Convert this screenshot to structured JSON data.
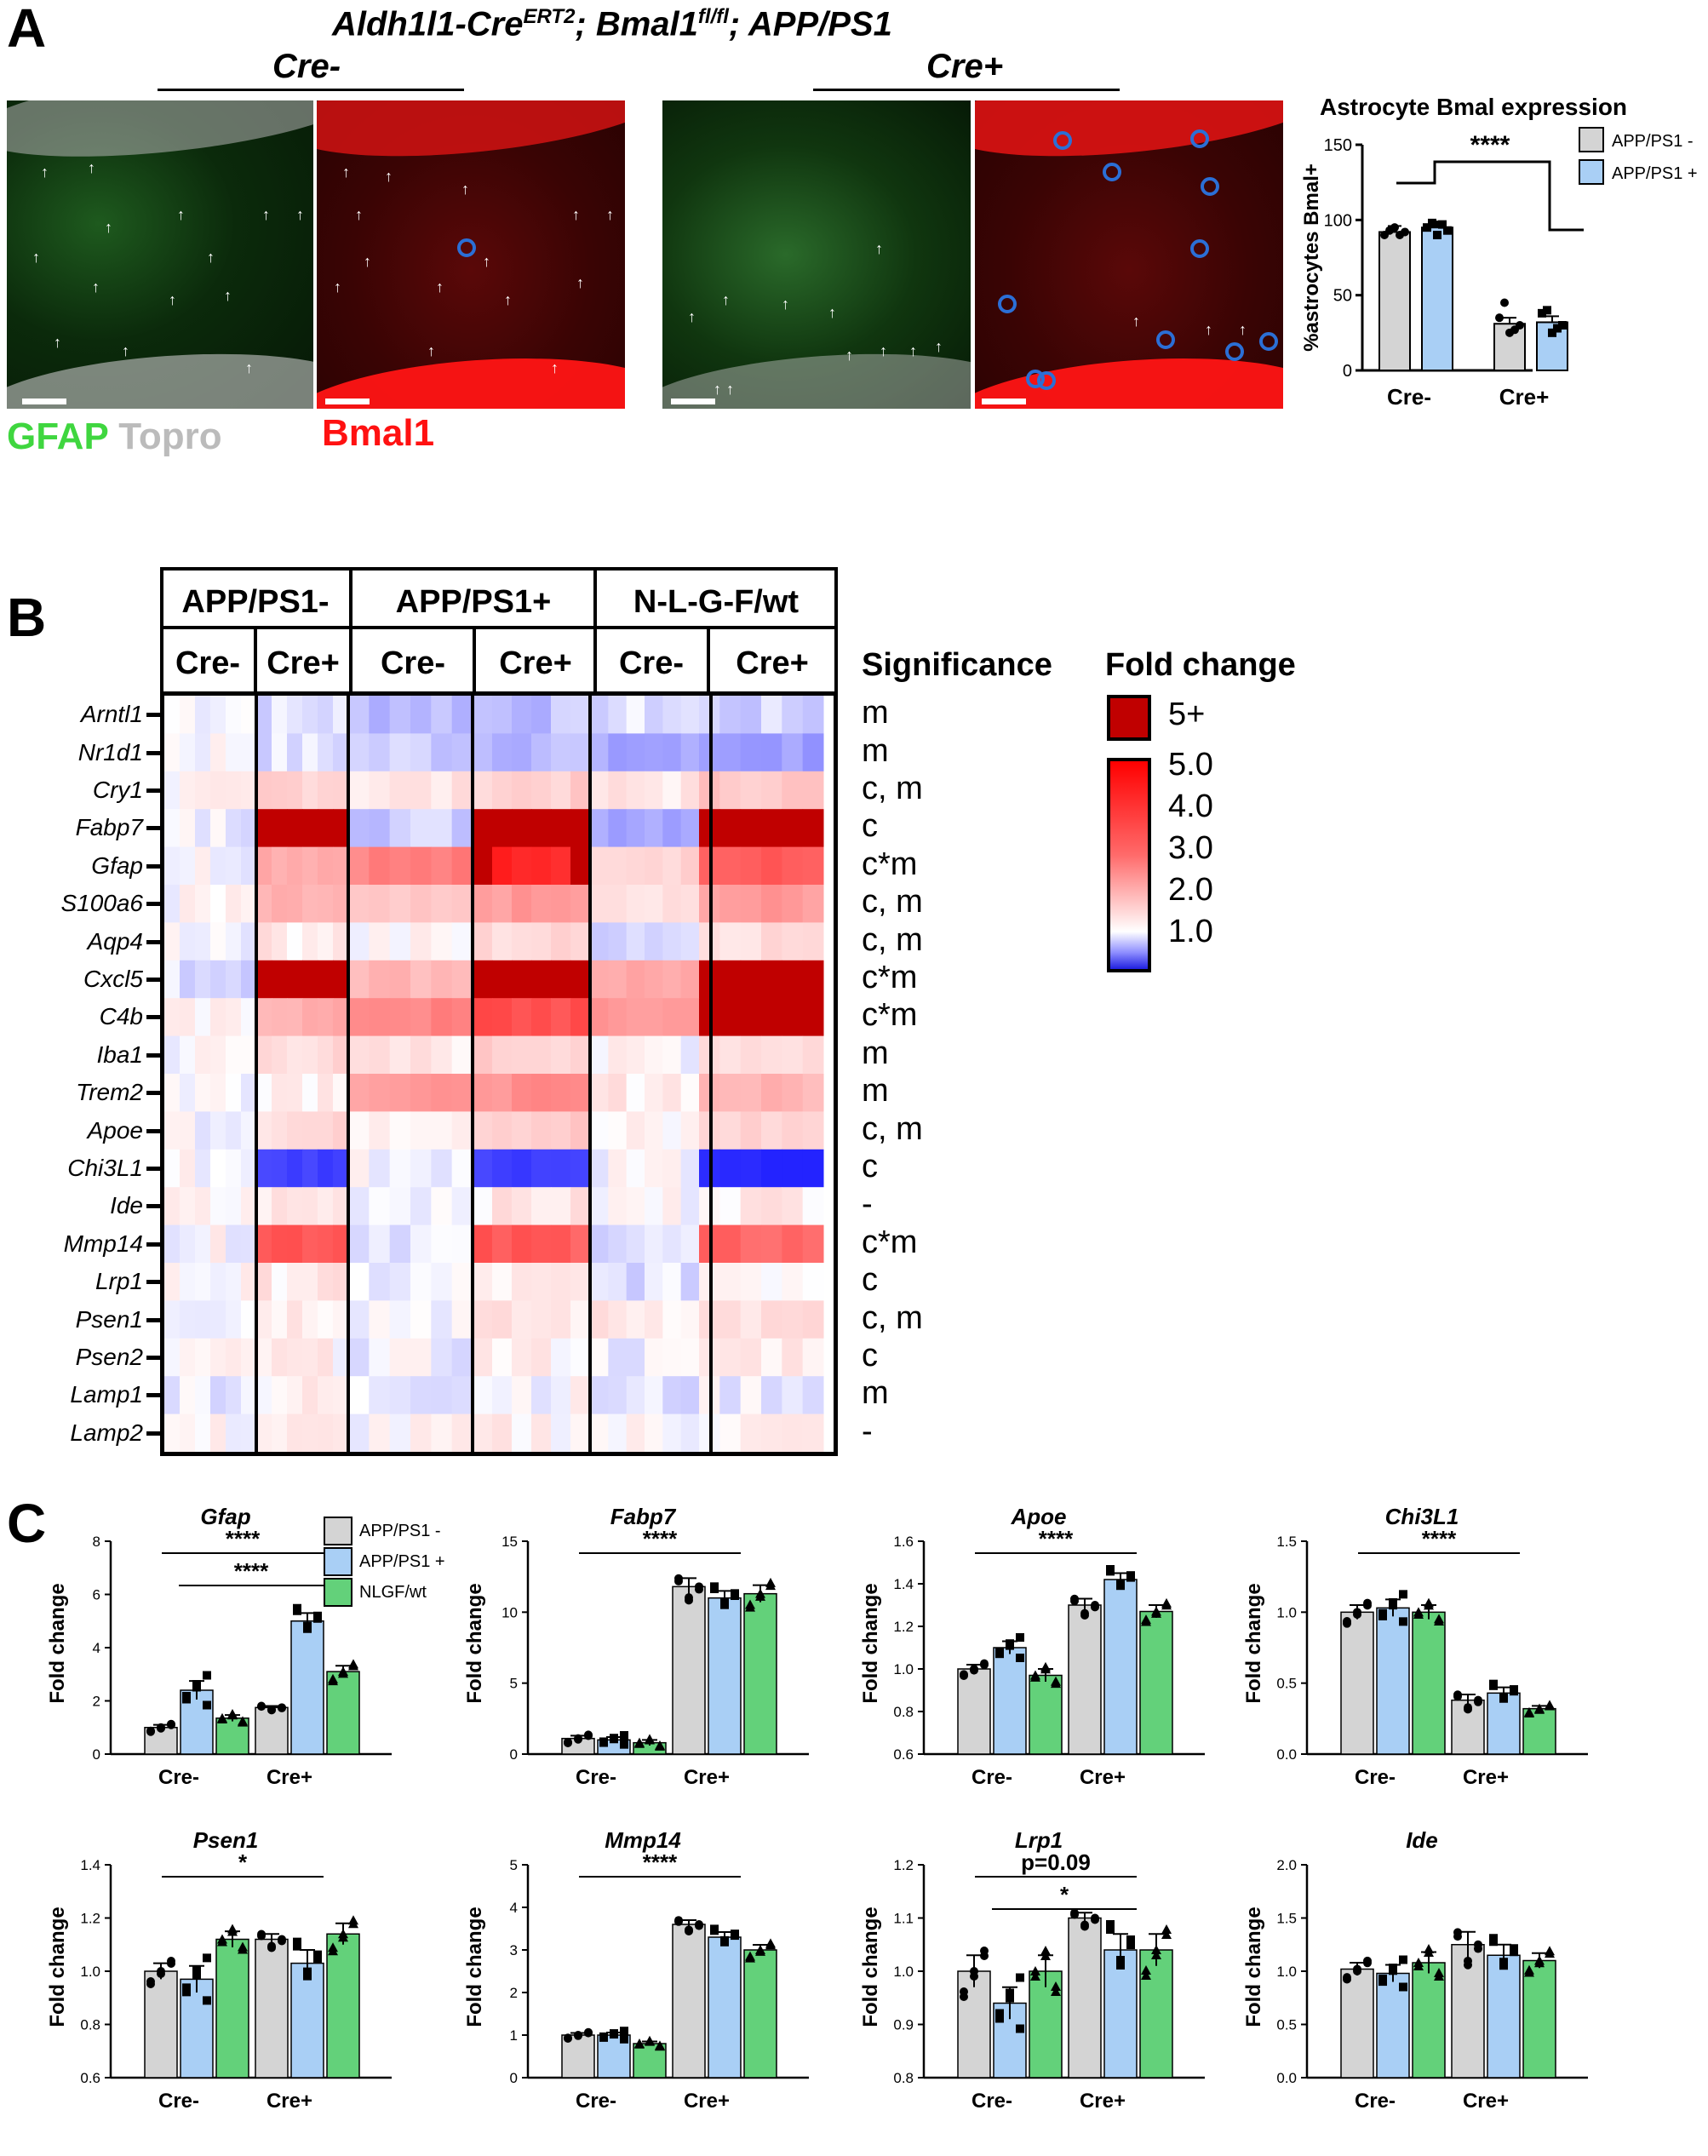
{
  "panel_a": {
    "letter": "A",
    "title_prefix": "Aldh1l1-Cre",
    "title_sup": "ERT2",
    "title_mid": "; Bmal1",
    "title_sup2": "fl/fl",
    "title_suffix": "; APP/PS1",
    "group_left": "Cre-",
    "group_right": "Cre+",
    "legend_gfap": "GFAP",
    "legend_topro": "Topro",
    "legend_bmal1": "Bmal1",
    "colors": {
      "gfap": "#3fd63f",
      "topro": "#bbbbbb",
      "bmal1": "#ff1111"
    },
    "chart_data": {
      "type": "bar",
      "title": "Astrocyte Bmal expression",
      "ylabel": "%astrocytes Bmal+",
      "categories": [
        "Cre-",
        "Cre+"
      ],
      "series": [
        {
          "name": "APP/PS1 -",
          "color": "#d4d4d4",
          "values": [
            92,
            31
          ]
        },
        {
          "name": "APP/PS1 +",
          "color": "#a9cff5",
          "values": [
            95,
            32
          ]
        }
      ],
      "ylim": [
        0,
        150
      ],
      "yticks": [
        "0",
        "50",
        "100",
        "150"
      ],
      "annotation": "****"
    }
  },
  "panel_b": {
    "letter": "B",
    "genotypes": [
      "APP/PS1-",
      "APP/PS1+",
      "N-L-G-F/wt"
    ],
    "cre": [
      "Cre-",
      "Cre+",
      "Cre-",
      "Cre+",
      "Cre-",
      "Cre+"
    ],
    "significance_title": "Significance",
    "foldchange_title": "Fold change",
    "legend_max": "5+",
    "legend_ticks": [
      "5.0",
      "4.0",
      "3.0",
      "2.0",
      "1.0"
    ],
    "colors": {
      "max": "#c00000",
      "high": "#ff1a1a",
      "low": "#3030e0"
    },
    "chart_data": {
      "type": "heatmap",
      "genes": [
        "Arntl1",
        "Nr1d1",
        "Cry1",
        "Fabp7",
        "Gfap",
        "S100a6",
        "Aqp4",
        "Cxcl5",
        "C4b",
        "Iba1",
        "Trem2",
        "Apoe",
        "Chi3L1",
        "Ide",
        "Mmp14",
        "Lrp1",
        "Psen1",
        "Psen2",
        "Lamp1",
        "Lamp2"
      ],
      "significance": [
        "m",
        "m",
        "c, m",
        "c",
        "c*m",
        "c, m",
        "c, m",
        "c*m",
        "c*m",
        "m",
        "m",
        "c, m",
        "c",
        "-",
        "c*m",
        "c",
        "c, m",
        "c",
        "m",
        "-"
      ],
      "group_mean_fold_change": [
        [
          1.0,
          0.9,
          0.8,
          0.8,
          0.9,
          0.85
        ],
        [
          1.0,
          0.9,
          0.85,
          0.8,
          0.7,
          0.7
        ],
        [
          1.0,
          1.3,
          1.1,
          1.3,
          1.1,
          1.4
        ],
        [
          0.95,
          6.0,
          0.85,
          6.0,
          0.75,
          6.0
        ],
        [
          1.0,
          1.8,
          2.5,
          4.8,
          1.3,
          3.2
        ],
        [
          1.0,
          1.6,
          1.3,
          2.0,
          1.1,
          2.0
        ],
        [
          1.0,
          1.1,
          1.0,
          1.2,
          0.9,
          1.2
        ],
        [
          0.9,
          6.0,
          1.6,
          6.0,
          1.8,
          6.0
        ],
        [
          1.0,
          1.7,
          2.4,
          3.6,
          2.0,
          5.0
        ],
        [
          1.0,
          1.2,
          1.1,
          1.3,
          1.0,
          1.2
        ],
        [
          1.0,
          1.1,
          2.0,
          2.2,
          1.1,
          1.6
        ],
        [
          1.0,
          1.2,
          1.1,
          1.35,
          1.0,
          1.25
        ],
        [
          1.0,
          0.4,
          1.0,
          0.4,
          1.0,
          0.3
        ],
        [
          1.0,
          1.1,
          1.0,
          1.1,
          1.0,
          1.1
        ],
        [
          1.0,
          3.5,
          0.95,
          3.3,
          0.9,
          3.0
        ],
        [
          1.0,
          1.1,
          0.95,
          1.05,
          0.9,
          1.05
        ],
        [
          1.0,
          1.1,
          1.0,
          1.1,
          1.1,
          1.15
        ],
        [
          1.0,
          1.05,
          0.95,
          1.05,
          0.95,
          1.1
        ],
        [
          0.95,
          1.05,
          0.95,
          1.0,
          0.9,
          0.95
        ],
        [
          1.0,
          1.05,
          1.0,
          1.05,
          1.0,
          1.05
        ]
      ]
    }
  },
  "panel_c": {
    "letter": "C",
    "legend": [
      "APP/PS1 -",
      "APP/PS1 +",
      "NLGF/wt"
    ],
    "colors": [
      "#d4d4d4",
      "#a9cff5",
      "#63d17a"
    ],
    "ylabel": "Fold change",
    "chart_data": [
      {
        "type": "bar",
        "title": "Gfap",
        "categories": [
          "Cre-",
          "Cre+"
        ],
        "values": [
          [
            1.0,
            2.4,
            1.35
          ],
          [
            1.75,
            5.0,
            3.1
          ]
        ],
        "errors": [
          [
            0.1,
            0.35,
            0.12
          ],
          [
            0.06,
            0.3,
            0.22
          ]
        ],
        "ylim": [
          0,
          8
        ],
        "yticks": [
          "0",
          "2",
          "4",
          "6",
          "8"
        ],
        "annotations": [
          "****",
          "****"
        ]
      },
      {
        "type": "bar",
        "title": "Fabp7",
        "categories": [
          "Cre-",
          "Cre+"
        ],
        "values": [
          [
            1.1,
            1.0,
            0.8
          ],
          [
            11.8,
            11.0,
            11.3
          ]
        ],
        "errors": [
          [
            0.2,
            0.2,
            0.2
          ],
          [
            0.6,
            0.5,
            0.6
          ]
        ],
        "ylim": [
          0,
          15
        ],
        "yticks": [
          "0",
          "5",
          "10",
          "15"
        ],
        "annotations": [
          "****"
        ]
      },
      {
        "type": "bar",
        "title": "Apoe",
        "categories": [
          "Cre-",
          "Cre+"
        ],
        "values": [
          [
            1.0,
            1.1,
            0.97
          ],
          [
            1.3,
            1.42,
            1.27
          ]
        ],
        "errors": [
          [
            0.02,
            0.03,
            0.03
          ],
          [
            0.03,
            0.03,
            0.03
          ]
        ],
        "ylim": [
          0.6,
          1.6
        ],
        "yticks": [
          "0.6",
          "0.8",
          "1.0",
          "1.2",
          "1.4",
          "1.6"
        ],
        "annotations": [
          "****"
        ]
      },
      {
        "type": "bar",
        "title": "Chi3L1",
        "categories": [
          "Cre-",
          "Cre+"
        ],
        "values": [
          [
            1.0,
            1.03,
            1.0
          ],
          [
            0.38,
            0.43,
            0.32
          ]
        ],
        "errors": [
          [
            0.05,
            0.06,
            0.05
          ],
          [
            0.04,
            0.04,
            0.02
          ]
        ],
        "ylim": [
          0,
          1.5
        ],
        "yticks": [
          "0.0",
          "0.5",
          "1.0",
          "1.5"
        ],
        "annotations": [
          "****"
        ]
      },
      {
        "type": "bar",
        "title": "Psen1",
        "categories": [
          "Cre-",
          "Cre+"
        ],
        "values": [
          [
            1.0,
            0.97,
            1.12
          ],
          [
            1.12,
            1.03,
            1.14
          ]
        ],
        "errors": [
          [
            0.03,
            0.05,
            0.03
          ],
          [
            0.02,
            0.05,
            0.04
          ]
        ],
        "ylim": [
          0.6,
          1.4
        ],
        "yticks": [
          "0.6",
          "0.8",
          "1.0",
          "1.2",
          "1.4"
        ],
        "annotations": [
          "*"
        ]
      },
      {
        "type": "bar",
        "title": "Mmp14",
        "categories": [
          "Cre-",
          "Cre+"
        ],
        "values": [
          [
            1.0,
            1.0,
            0.8
          ],
          [
            3.6,
            3.3,
            3.0
          ]
        ],
        "errors": [
          [
            0.05,
            0.06,
            0.05
          ],
          [
            0.1,
            0.12,
            0.12
          ]
        ],
        "ylim": [
          0,
          5
        ],
        "yticks": [
          "0",
          "1",
          "2",
          "3",
          "4",
          "5"
        ],
        "annotations": [
          "****"
        ]
      },
      {
        "type": "bar",
        "title": "Lrp1",
        "categories": [
          "Cre-",
          "Cre+"
        ],
        "values": [
          [
            1.0,
            0.94,
            1.0
          ],
          [
            1.1,
            1.04,
            1.04
          ]
        ],
        "errors": [
          [
            0.03,
            0.03,
            0.03
          ],
          [
            0.01,
            0.03,
            0.03
          ]
        ],
        "ylim": [
          0.8,
          1.2
        ],
        "yticks": [
          "0.8",
          "0.9",
          "1.0",
          "1.1",
          "1.2"
        ],
        "annotations": [
          "p=0.09",
          "*"
        ]
      },
      {
        "type": "bar",
        "title": "Ide",
        "categories": [
          "Cre-",
          "Cre+"
        ],
        "values": [
          [
            1.02,
            0.98,
            1.08
          ],
          [
            1.25,
            1.15,
            1.1
          ]
        ],
        "errors": [
          [
            0.06,
            0.08,
            0.1
          ],
          [
            0.12,
            0.1,
            0.07
          ]
        ],
        "ylim": [
          0,
          2
        ],
        "yticks": [
          "0.0",
          "0.5",
          "1.0",
          "1.5",
          "2.0"
        ],
        "annotations": []
      }
    ]
  }
}
